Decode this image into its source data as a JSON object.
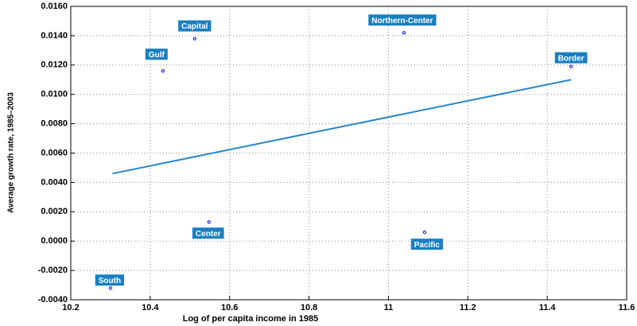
{
  "chart_data": {
    "type": "scatter",
    "xlabel": "Log of per capita income in 1985",
    "ylabel": "Average growth rate, 1985–2003",
    "point_labels": [
      "Capital",
      "Gulf",
      "Northern-Center",
      "Border",
      "Center",
      "Pacific",
      "South"
    ],
    "x": [
      10.512,
      10.432,
      11.039,
      11.46,
      10.548,
      11.091,
      10.3
    ],
    "values": [
      0.0138,
      0.0116,
      0.0142,
      0.0119,
      0.0013,
      0.0006,
      -0.0032
    ],
    "color": "#0000ff",
    "label_color": "#1a7fc1",
    "fit": {
      "x": [
        10.305,
        11.46
      ],
      "values": [
        0.0046,
        0.011
      ],
      "color": "#2a86c4"
    },
    "xlim": [
      10.2,
      11.6
    ],
    "xticks": [
      10.2,
      10.4,
      10.6,
      10.8,
      11,
      11.2,
      11.4,
      11.6
    ],
    "ylim": [
      -0.004,
      0.016
    ],
    "yticks": [
      {
        "value": -0.004,
        "label": "-0.0040"
      },
      {
        "value": -0.002,
        "label": "-0.0020"
      },
      {
        "value": 0,
        "label": "0.0000"
      },
      {
        "value": 0.002,
        "label": "0.0020"
      },
      {
        "value": 0.004,
        "label": "0.0040"
      },
      {
        "value": 0.006,
        "label": "0.0060"
      },
      {
        "value": 0.008,
        "label": "0.0080"
      },
      {
        "value": 0.01,
        "label": "0.0100"
      },
      {
        "value": 0.012,
        "label": "0.0120"
      },
      {
        "value": 0.014,
        "label": "0.0140"
      },
      {
        "value": 0.016,
        "label": "0.0160"
      }
    ],
    "grid": true
  }
}
